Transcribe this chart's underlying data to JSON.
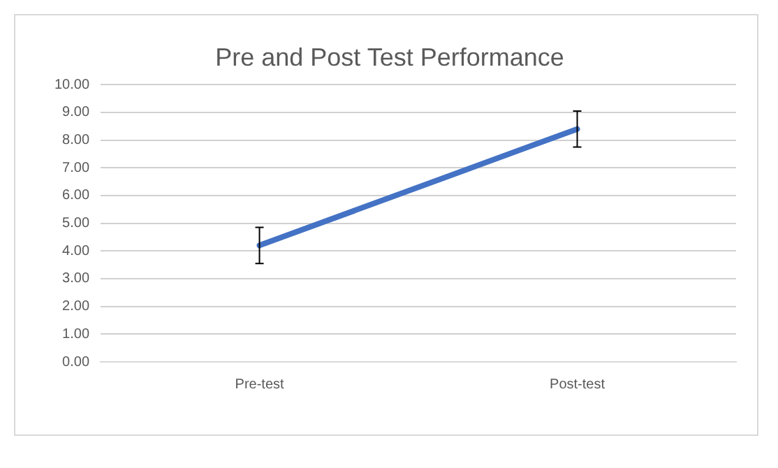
{
  "chart_data": {
    "type": "line",
    "title": "Pre and Post Test Performance",
    "categories": [
      "Pre-test",
      "Post-test"
    ],
    "values": [
      4.2,
      8.4
    ],
    "errors": [
      0.65,
      0.65
    ],
    "color": "#4472c4",
    "marker": "none",
    "line_style": "solid",
    "grid": "y",
    "legend": false,
    "ylim": [
      0,
      10
    ],
    "yticks": [
      {
        "value": 0,
        "label": "0.00"
      },
      {
        "value": 1,
        "label": "1.00"
      },
      {
        "value": 2,
        "label": "2.00"
      },
      {
        "value": 3,
        "label": "3.00"
      },
      {
        "value": 4,
        "label": "4.00"
      },
      {
        "value": 5,
        "label": "5.00"
      },
      {
        "value": 6,
        "label": "6.00"
      },
      {
        "value": 7,
        "label": "7.00"
      },
      {
        "value": 8,
        "label": "8.00"
      },
      {
        "value": 9,
        "label": "9.00"
      },
      {
        "value": 10,
        "label": "10.00"
      }
    ]
  }
}
